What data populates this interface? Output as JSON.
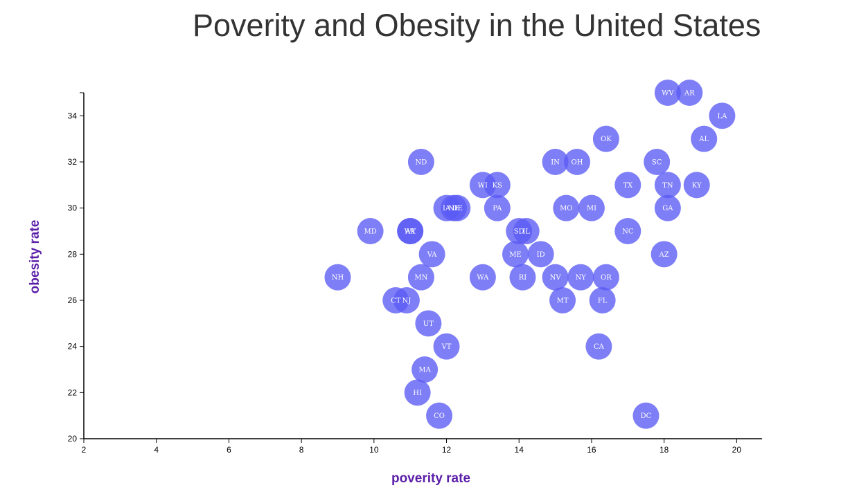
{
  "chart_data": {
    "type": "scatter",
    "title": "Poverity and Obesity in the United States",
    "xlabel": "poverity rate",
    "ylabel": "obesity rate",
    "xlim": [
      2,
      20.7
    ],
    "ylim": [
      20,
      35
    ],
    "x_ticks": [
      2,
      4,
      6,
      8,
      10,
      12,
      14,
      16,
      18,
      20
    ],
    "y_ticks": [
      20,
      22,
      24,
      26,
      28,
      30,
      32,
      34
    ],
    "point_color": "#5a5af5",
    "axis_label_color": "#5b1fa8",
    "grid": false,
    "points": [
      {
        "label": "WV",
        "x": 18.1,
        "y": 35
      },
      {
        "label": "AR",
        "x": 18.7,
        "y": 35
      },
      {
        "label": "LA",
        "x": 19.6,
        "y": 34
      },
      {
        "label": "OK",
        "x": 16.4,
        "y": 33
      },
      {
        "label": "AL",
        "x": 19.1,
        "y": 33
      },
      {
        "label": "ND",
        "x": 11.3,
        "y": 32
      },
      {
        "label": "IN",
        "x": 15.0,
        "y": 32
      },
      {
        "label": "OH",
        "x": 15.6,
        "y": 32
      },
      {
        "label": "SC",
        "x": 17.8,
        "y": 32
      },
      {
        "label": "WI",
        "x": 13.0,
        "y": 31
      },
      {
        "label": "KS",
        "x": 13.4,
        "y": 31
      },
      {
        "label": "TX",
        "x": 17.0,
        "y": 31
      },
      {
        "label": "TN",
        "x": 18.1,
        "y": 31
      },
      {
        "label": "KY",
        "x": 18.9,
        "y": 31
      },
      {
        "label": "IA",
        "x": 12.0,
        "y": 30
      },
      {
        "label": "NE",
        "x": 12.2,
        "y": 30
      },
      {
        "label": "DE",
        "x": 12.3,
        "y": 30
      },
      {
        "label": "PA",
        "x": 13.4,
        "y": 30
      },
      {
        "label": "MO",
        "x": 15.3,
        "y": 30
      },
      {
        "label": "MI",
        "x": 16.0,
        "y": 30
      },
      {
        "label": "GA",
        "x": 18.1,
        "y": 30
      },
      {
        "label": "MD",
        "x": 9.9,
        "y": 29
      },
      {
        "label": "AK",
        "x": 11.0,
        "y": 29
      },
      {
        "label": "WY",
        "x": 11.0,
        "y": 29
      },
      {
        "label": "SD",
        "x": 14.0,
        "y": 29
      },
      {
        "label": "IL",
        "x": 14.2,
        "y": 29
      },
      {
        "label": "NC",
        "x": 17.0,
        "y": 29
      },
      {
        "label": "VA",
        "x": 11.6,
        "y": 28
      },
      {
        "label": "ME",
        "x": 13.9,
        "y": 28
      },
      {
        "label": "ID",
        "x": 14.6,
        "y": 28
      },
      {
        "label": "AZ",
        "x": 18.0,
        "y": 28
      },
      {
        "label": "NH",
        "x": 9.0,
        "y": 27
      },
      {
        "label": "MN",
        "x": 11.3,
        "y": 27
      },
      {
        "label": "WA",
        "x": 13.0,
        "y": 27
      },
      {
        "label": "RI",
        "x": 14.1,
        "y": 27
      },
      {
        "label": "NV",
        "x": 15.0,
        "y": 27
      },
      {
        "label": "NY",
        "x": 15.7,
        "y": 27
      },
      {
        "label": "OR",
        "x": 16.4,
        "y": 27
      },
      {
        "label": "CT",
        "x": 10.6,
        "y": 26
      },
      {
        "label": "NJ",
        "x": 10.9,
        "y": 26
      },
      {
        "label": "MT",
        "x": 15.2,
        "y": 26
      },
      {
        "label": "FL",
        "x": 16.3,
        "y": 26
      },
      {
        "label": "UT",
        "x": 11.5,
        "y": 25
      },
      {
        "label": "VT",
        "x": 12.0,
        "y": 24
      },
      {
        "label": "CA",
        "x": 16.2,
        "y": 24
      },
      {
        "label": "MA",
        "x": 11.4,
        "y": 23
      },
      {
        "label": "HI",
        "x": 11.2,
        "y": 22
      },
      {
        "label": "CO",
        "x": 11.8,
        "y": 21
      },
      {
        "label": "DC",
        "x": 17.5,
        "y": 21
      }
    ]
  }
}
